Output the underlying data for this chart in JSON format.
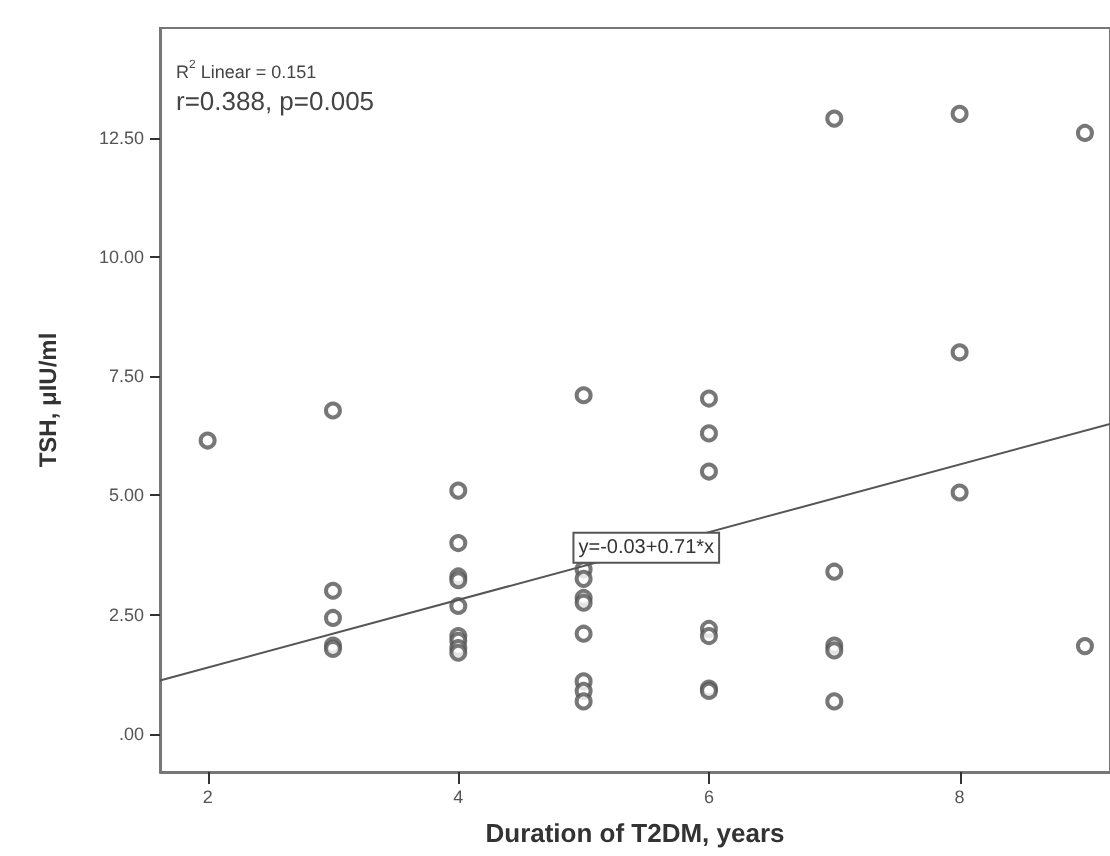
{
  "chart_data": {
    "type": "scatter",
    "xlabel": "Duration of T2DM, years",
    "ylabel": "TSH, μIU/ml",
    "xlim": [
      1.62,
      9.2
    ],
    "ylim": [
      -0.8,
      14.8
    ],
    "xticks": [
      2,
      4,
      6,
      8
    ],
    "yticks": [
      {
        "value": 0,
        "label": ".00"
      },
      {
        "value": 2.5,
        "label": "2.50"
      },
      {
        "value": 5,
        "label": "5.00"
      },
      {
        "value": 7.5,
        "label": "7.50"
      },
      {
        "value": 10,
        "label": "10.00"
      },
      {
        "value": 12.5,
        "label": "12.50"
      }
    ],
    "grid": false,
    "series": [
      {
        "marker": "circle",
        "color": "#555555",
        "x": [
          2,
          3,
          3,
          3,
          3,
          3,
          4,
          4,
          4,
          4,
          4,
          4,
          4,
          4,
          4,
          5,
          5,
          5,
          5,
          5,
          5,
          5,
          5,
          5,
          6,
          6,
          6,
          6,
          6,
          6,
          6,
          7,
          7,
          7,
          7,
          7,
          8,
          8,
          8,
          9,
          9
        ],
        "values": [
          6.15,
          6.78,
          3.0,
          2.43,
          1.85,
          1.78,
          5.1,
          4.0,
          3.3,
          3.22,
          2.68,
          2.05,
          1.95,
          1.8,
          1.7,
          7.1,
          3.45,
          3.25,
          2.85,
          2.75,
          2.1,
          1.1,
          0.9,
          0.68,
          7.03,
          6.3,
          5.5,
          2.2,
          2.05,
          0.95,
          0.9,
          12.9,
          3.4,
          1.85,
          1.75,
          0.68,
          13.0,
          8.0,
          5.06,
          12.6,
          1.84
        ]
      },
      {
        "type": "line",
        "color": "#555555",
        "x": [
          1.62,
          9.2
        ],
        "values": [
          1.12,
          6.5
        ]
      }
    ],
    "annotations": [
      "R$^{2}$ Linear = 0.151",
      "r=0.388, p=0.005",
      {
        "text": "y=-0.03+0.71*x",
        "x": 5.5,
        "y": 3.9
      }
    ]
  }
}
